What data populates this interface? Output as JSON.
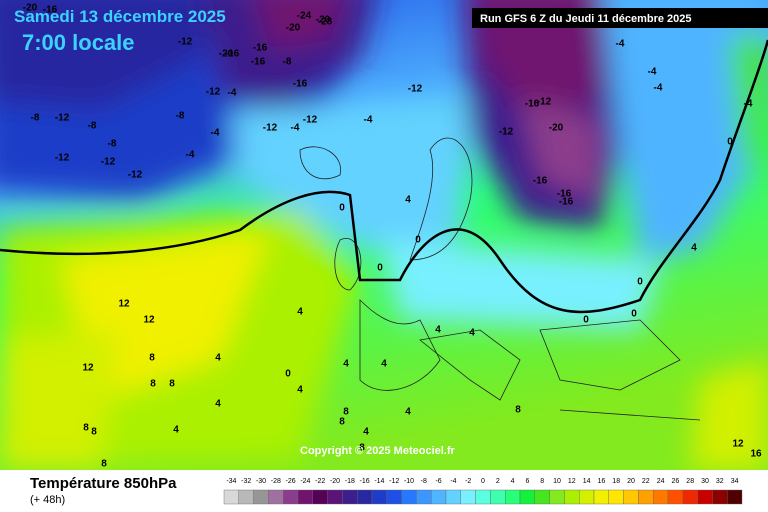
{
  "header": {
    "date": "Samedi 13 décembre 2025",
    "time": "7:00 locale",
    "run": "Run GFS 6 Z du Jeudi 11 décembre 2025",
    "copyright": "Copyright © 2025 Meteociel.fr"
  },
  "legend": {
    "title": "Température 850hPa",
    "lead": "(+ 48h)",
    "ticks": [
      -34,
      -32,
      -30,
      -28,
      -26,
      -24,
      -22,
      -20,
      -18,
      -16,
      -14,
      -12,
      -10,
      -8,
      -6,
      -4,
      -2,
      0,
      2,
      4,
      6,
      8,
      10,
      12,
      14,
      16,
      18,
      20,
      22,
      24,
      26,
      28,
      30,
      32,
      34
    ],
    "colors": [
      "#d8d8d8",
      "#b8b8b8",
      "#969696",
      "#a070a0",
      "#8c3c8c",
      "#701470",
      "#560056",
      "#5a1478",
      "#3c1e8c",
      "#2828a0",
      "#1e3cc8",
      "#1e50e6",
      "#2878ff",
      "#3c96ff",
      "#50b4ff",
      "#64d2ff",
      "#78f0ff",
      "#5affe0",
      "#3cffb0",
      "#28ff78",
      "#14f03c",
      "#46e61e",
      "#82ea1e",
      "#aaf000",
      "#d2f000",
      "#f0f000",
      "#ffe600",
      "#ffc800",
      "#ffa000",
      "#ff7800",
      "#ff5000",
      "#f02800",
      "#c80000",
      "#8c0000",
      "#500000"
    ]
  },
  "map_labels": [
    "-20",
    "-16",
    "-12",
    "-8",
    "-12",
    "-8",
    "-12",
    "-12",
    "-8",
    "-8",
    "-12",
    "-4",
    "-4",
    "-16",
    "-20",
    "-16",
    "-12",
    "-20",
    "-16",
    "-16",
    "-12",
    "-4",
    "-4",
    "-8",
    "-12",
    "-20",
    "-24",
    "-28",
    "-12",
    "-4",
    "-12",
    "-16",
    "-12",
    "-16",
    "-20",
    "-16",
    "-16",
    "-4",
    "-4",
    "-4",
    "0",
    "0",
    "4",
    "0",
    "0",
    "0",
    "0",
    "0",
    "4",
    "12",
    "12",
    "8",
    "12",
    "8",
    "8",
    "4",
    "4",
    "0",
    "4",
    "4",
    "4",
    "4",
    "8",
    "4",
    "4",
    "8",
    "8",
    "4",
    "8",
    "8",
    "12",
    "16",
    "4",
    "8",
    "8",
    "4",
    "-4"
  ]
}
